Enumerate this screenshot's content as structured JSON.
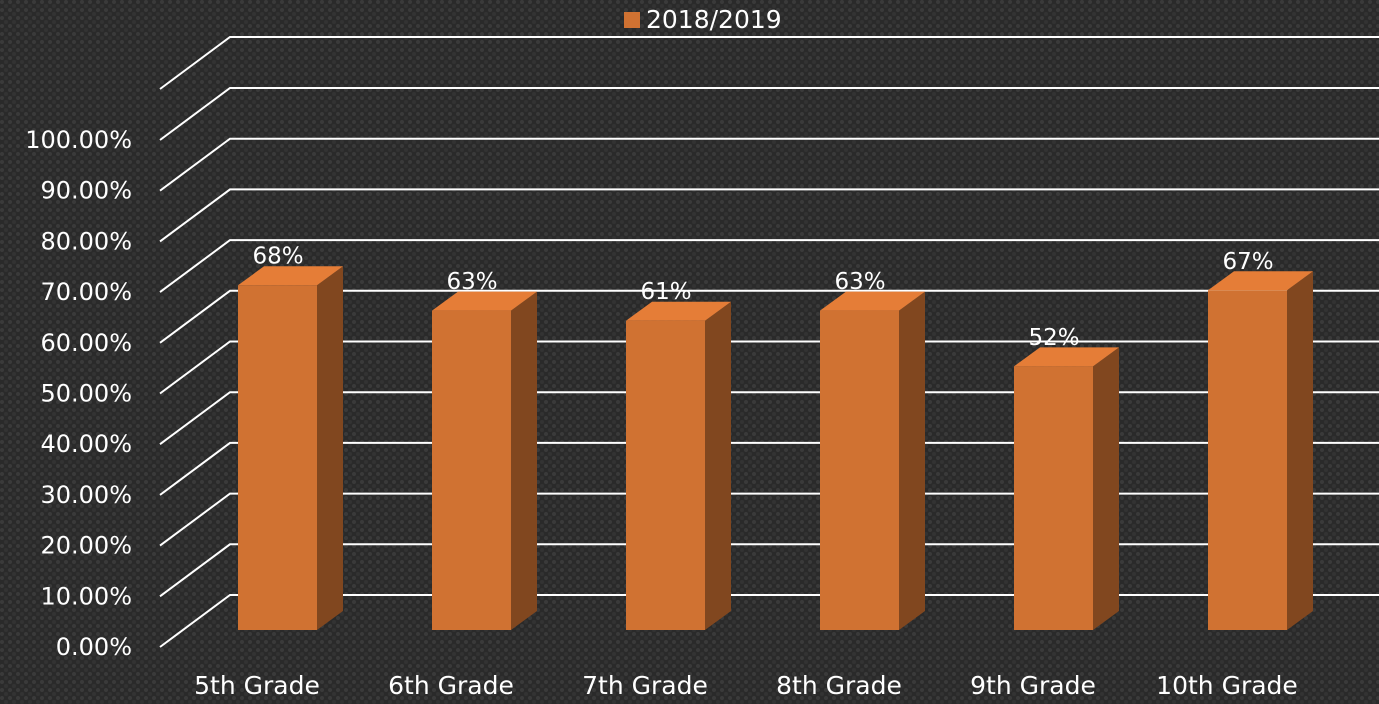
{
  "chart_data": {
    "type": "bar3d",
    "categories": [
      "5th Grade",
      "6th Grade",
      "7th Grade",
      "8th Grade",
      "9th Grade",
      "10th Grade"
    ],
    "series": [
      {
        "name": "2018/2019",
        "color": "#d07232",
        "values": [
          68,
          63,
          61,
          63,
          52,
          67
        ],
        "value_labels": [
          "68%",
          "63%",
          "61%",
          "63%",
          "52%",
          "67%"
        ]
      }
    ],
    "ylim": [
      0,
      100
    ],
    "yticks": [
      {
        "value": 0,
        "label": "0.00%"
      },
      {
        "value": 10,
        "label": "10.00%"
      },
      {
        "value": 20,
        "label": "20.00%"
      },
      {
        "value": 30,
        "label": "30.00%"
      },
      {
        "value": 40,
        "label": "40.00%"
      },
      {
        "value": 50,
        "label": "50.00%"
      },
      {
        "value": 60,
        "label": "60.00%"
      },
      {
        "value": 70,
        "label": "70.00%"
      },
      {
        "value": 80,
        "label": "80.00%"
      },
      {
        "value": 90,
        "label": "90.00%"
      },
      {
        "value": 100,
        "label": "100.00%"
      }
    ],
    "grid": true,
    "legend": "top"
  }
}
